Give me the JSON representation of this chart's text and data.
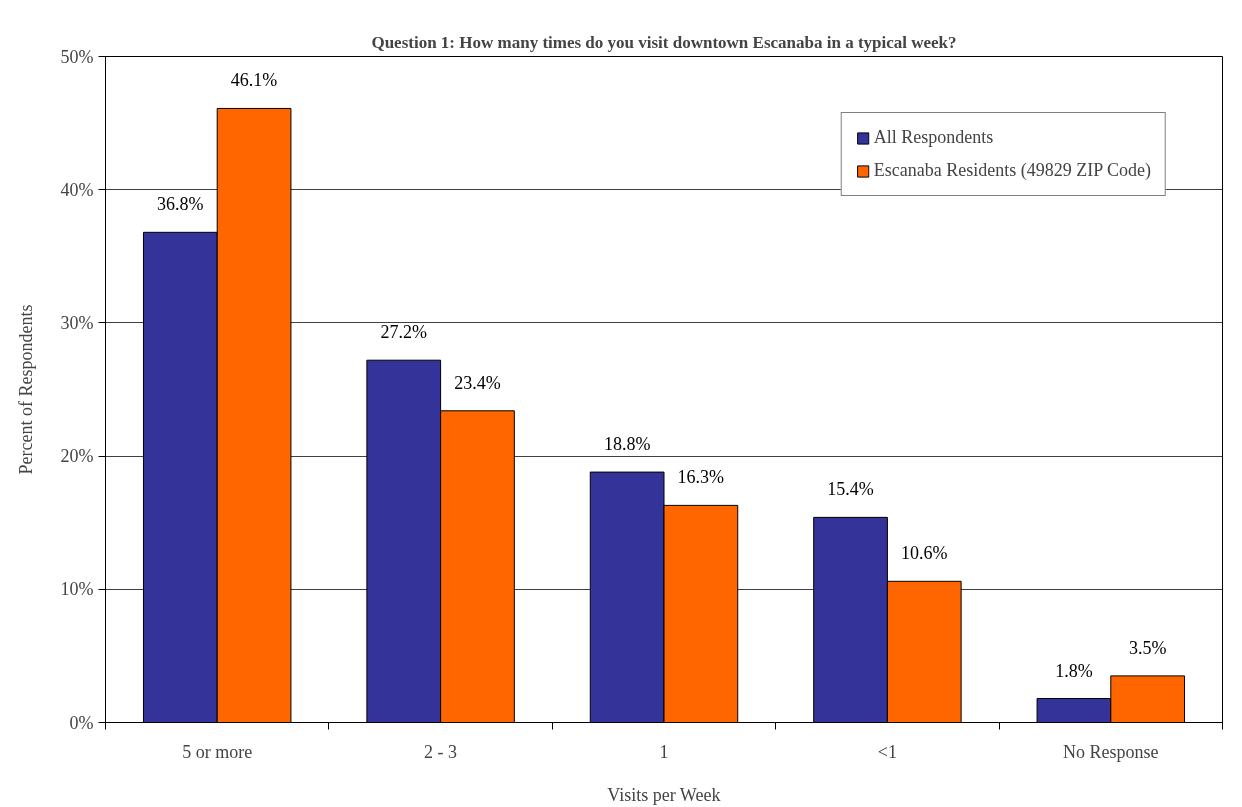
{
  "chart_data": {
    "type": "bar",
    "title": "Question 1: How many times do you visit downtown Escanaba in a typical week?",
    "xlabel": "Visits per Week",
    "ylabel": "Percent of Respondents",
    "categories": [
      "5 or more",
      "2 - 3",
      "1",
      "<1",
      "No Response"
    ],
    "series": [
      {
        "name": "All Respondents",
        "color": "#333399",
        "values": [
          36.8,
          27.2,
          18.8,
          15.4,
          1.8
        ],
        "value_labels": [
          "36.8%",
          "27.2%",
          "18.8%",
          "15.4%",
          "1.8%"
        ]
      },
      {
        "name": "Escanaba Residents (49829 ZIP Code)",
        "color": "#ff6600",
        "values": [
          46.1,
          23.4,
          16.3,
          10.6,
          3.5
        ],
        "value_labels": [
          "46.1%",
          "23.4%",
          "16.3%",
          "10.6%",
          "3.5%"
        ]
      }
    ],
    "ylim": [
      0,
      50
    ],
    "yticks": [
      {
        "value": 0,
        "label": "0%"
      },
      {
        "value": 10,
        "label": "10%"
      },
      {
        "value": 20,
        "label": "20%"
      },
      {
        "value": 30,
        "label": "30%"
      },
      {
        "value": 40,
        "label": "40%"
      },
      {
        "value": 50,
        "label": "50%"
      }
    ],
    "grid": "y",
    "legend": "top right"
  }
}
